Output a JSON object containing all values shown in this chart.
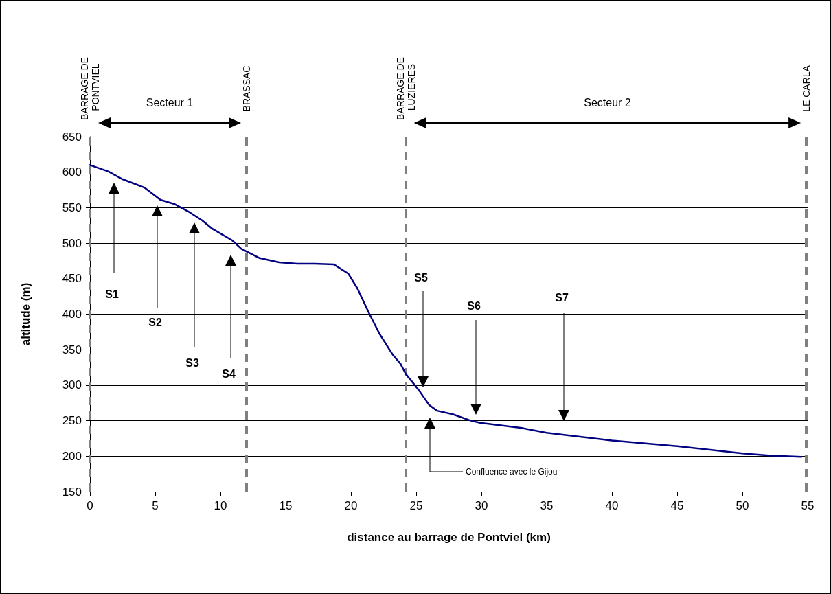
{
  "chart_data": {
    "type": "line",
    "xlabel": "distance au barrage de Pontviel (km)",
    "ylabel": "altitude (m)",
    "x": [
      0,
      1.4,
      2.5,
      3.5,
      4.2,
      5.4,
      6.5,
      7.5,
      8.6,
      9.4,
      10.9,
      11.6,
      13,
      14.5,
      15.9,
      17.2,
      18.7,
      19.8,
      20.5,
      21.4,
      22.2,
      23.2,
      23.8,
      24.2,
      25.2,
      26,
      26.6,
      27.8,
      29.2,
      29.9,
      33,
      35,
      40,
      45,
      50,
      52,
      54.5
    ],
    "series": [
      {
        "color": "#000080",
        "values": [
          610,
          601,
          590,
          583,
          578,
          561,
          555,
          545,
          532,
          520,
          504,
          492,
          479,
          473,
          471,
          471,
          470,
          457,
          436,
          401,
          372,
          343,
          330,
          316,
          293,
          272,
          264,
          259,
          250,
          247,
          240,
          233,
          222,
          214,
          204,
          201,
          199
        ]
      }
    ],
    "xlim": [
      0,
      55
    ],
    "xticks": [
      0,
      5,
      10,
      15,
      20,
      25,
      30,
      35,
      40,
      45,
      50,
      55
    ],
    "ylim": [
      150,
      650
    ],
    "yticks": [
      150,
      200,
      250,
      300,
      350,
      400,
      450,
      500,
      550,
      600,
      650
    ],
    "grid": "y",
    "marker": "none",
    "line_style": "solid",
    "ref_lines": [
      {
        "axis": "x",
        "value": 0,
        "label": "BARRAGE DE PONTVIEL",
        "color": "#808080",
        "line_style": "dashed"
      },
      {
        "axis": "x",
        "value": 12,
        "label": "BRASSAC",
        "color": "#808080",
        "line_style": "dashed"
      },
      {
        "axis": "x",
        "value": 24.2,
        "label": "BARRAGE DE LUZIERES",
        "color": "#808080",
        "line_style": "dashed"
      },
      {
        "axis": "x",
        "value": 54.9,
        "label": "LE CARLA",
        "color": "#808080",
        "line_style": "dashed"
      }
    ],
    "annotations": [
      "S1",
      "S2",
      "S3",
      "S4",
      "S5",
      "S6",
      "S7",
      "Confluence avec le Gijou",
      "Secteur 1",
      "Secteur 2"
    ]
  }
}
